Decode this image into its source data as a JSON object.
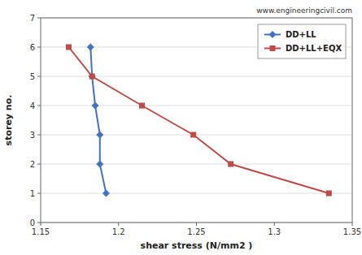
{
  "chart_data": {
    "type": "line",
    "xlabel": "shear stress (N/mm2 )",
    "ylabel": "storey no.",
    "annotation": "www.engineeringcivil.com",
    "series": [
      {
        "name": "DD+LL",
        "color": "#4472C4",
        "marker": "diamond",
        "x": [
          1.182,
          1.183,
          1.185,
          1.188,
          1.188,
          1.192
        ],
        "values": [
          6,
          5,
          4,
          3,
          2,
          1
        ]
      },
      {
        "name": "DD+LL+EQX",
        "color": "#BE4B48",
        "marker": "square",
        "x": [
          1.168,
          1.183,
          1.215,
          1.248,
          1.272,
          1.335
        ],
        "values": [
          6,
          5,
          4,
          3,
          2,
          1
        ]
      }
    ],
    "xlim": [
      1.15,
      1.35
    ],
    "ylim": [
      0,
      7
    ],
    "xticks": [
      1.15,
      1.2,
      1.25,
      1.3,
      1.35
    ],
    "yticks": [
      0,
      1,
      2,
      3,
      4,
      5,
      6,
      7
    ],
    "grid": "y",
    "legend": "upper right"
  }
}
